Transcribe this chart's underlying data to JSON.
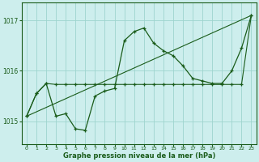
{
  "bg_color": "#cdeeed",
  "grid_color": "#9ed4ce",
  "line_color": "#1a5c1a",
  "marker_color": "#1a5c1a",
  "xlabel": "Graphe pression niveau de la mer (hPa)",
  "ylabel_ticks": [
    1015,
    1016,
    1017
  ],
  "ylim": [
    1014.55,
    1017.35
  ],
  "xlim": [
    -0.5,
    23.5
  ],
  "xticks": [
    0,
    1,
    2,
    3,
    4,
    5,
    6,
    7,
    8,
    9,
    10,
    11,
    12,
    13,
    14,
    15,
    16,
    17,
    18,
    19,
    20,
    21,
    22,
    23
  ],
  "line1_x": [
    0,
    1,
    2,
    3,
    4,
    5,
    6,
    7,
    8,
    9,
    10,
    11,
    12,
    13,
    14,
    15,
    16,
    17,
    18,
    19,
    20,
    21,
    22,
    23
  ],
  "line1_y": [
    1015.1,
    1015.55,
    1015.75,
    1015.1,
    1015.15,
    1014.85,
    1014.82,
    1015.5,
    1015.6,
    1015.65,
    1016.6,
    1016.78,
    1016.85,
    1016.55,
    1016.4,
    1016.3,
    1016.1,
    1015.85,
    1015.8,
    1015.75,
    1015.75,
    1016.0,
    1016.45,
    1017.1
  ],
  "line2_x": [
    0,
    1,
    2,
    3,
    4,
    5,
    6,
    7,
    8,
    9,
    10,
    11,
    12,
    13,
    14,
    15,
    16,
    17,
    18,
    19,
    20,
    21,
    22,
    23
  ],
  "line2_y": [
    1015.1,
    1015.55,
    1015.75,
    1015.73,
    1015.73,
    1015.73,
    1015.73,
    1015.73,
    1015.73,
    1015.73,
    1015.73,
    1015.73,
    1015.73,
    1015.73,
    1015.73,
    1015.73,
    1015.73,
    1015.73,
    1015.73,
    1015.73,
    1015.73,
    1015.73,
    1015.73,
    1017.1
  ],
  "line3_x": [
    0,
    23
  ],
  "line3_y": [
    1015.1,
    1017.1
  ]
}
